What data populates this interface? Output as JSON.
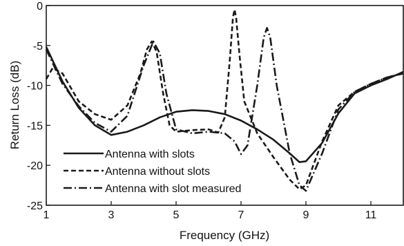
{
  "chart_data": {
    "type": "line",
    "xlabel": "Frequency (GHz)",
    "ylabel": "Return Loss (dB)",
    "xlim": [
      1,
      12
    ],
    "ylim": [
      -25,
      0
    ],
    "x_ticks": [
      1,
      3,
      5,
      7,
      9,
      11
    ],
    "y_ticks": [
      0,
      -5,
      -10,
      -15,
      -20,
      -25
    ],
    "x_tick_labels": [
      "1",
      "3",
      "5",
      "7",
      "9",
      "11"
    ],
    "y_tick_labels": [
      "0",
      "-5",
      "-10",
      "-15",
      "-20",
      "-25"
    ],
    "grid": false,
    "legend_position": "bottom-left",
    "series": [
      {
        "name": "Antenna with slots",
        "line_style": "solid",
        "color": "#1a1a1a",
        "points": [
          [
            1,
            -5.2
          ],
          [
            1.5,
            -9.5
          ],
          [
            2,
            -12.8
          ],
          [
            2.5,
            -15
          ],
          [
            3,
            -16.2
          ],
          [
            3.5,
            -15.8
          ],
          [
            4,
            -15
          ],
          [
            4.5,
            -14
          ],
          [
            5,
            -13.3
          ],
          [
            5.5,
            -13.1
          ],
          [
            6,
            -13.2
          ],
          [
            6.5,
            -13.6
          ],
          [
            7,
            -14.4
          ],
          [
            7.5,
            -15.5
          ],
          [
            8,
            -16.8
          ],
          [
            8.5,
            -18.5
          ],
          [
            8.8,
            -19.6
          ],
          [
            9,
            -19.5
          ],
          [
            9.5,
            -17.2
          ],
          [
            10,
            -13.5
          ],
          [
            10.5,
            -11
          ],
          [
            11,
            -10
          ],
          [
            11.5,
            -9.2
          ],
          [
            12,
            -8.3
          ]
        ]
      },
      {
        "name": "Antenna without slots",
        "line_style": "dashed",
        "color": "#1a1a1a",
        "points": [
          [
            1,
            -9.2
          ],
          [
            1.2,
            -7.8
          ],
          [
            1.5,
            -8.5
          ],
          [
            2,
            -12
          ],
          [
            2.5,
            -13.6
          ],
          [
            3,
            -14.3
          ],
          [
            3.5,
            -12.5
          ],
          [
            3.9,
            -8.5
          ],
          [
            4.1,
            -5.5
          ],
          [
            4.25,
            -4.5
          ],
          [
            4.4,
            -5.8
          ],
          [
            4.6,
            -11
          ],
          [
            4.8,
            -15
          ],
          [
            5,
            -15.8
          ],
          [
            5.5,
            -15.6
          ],
          [
            6,
            -15.5
          ],
          [
            6.3,
            -15.9
          ],
          [
            6.5,
            -14
          ],
          [
            6.65,
            -7
          ],
          [
            6.75,
            -1.5
          ],
          [
            6.8,
            -0.5
          ],
          [
            6.85,
            -1.5
          ],
          [
            6.95,
            -6
          ],
          [
            7.1,
            -12
          ],
          [
            7.5,
            -16
          ],
          [
            8,
            -19
          ],
          [
            8.5,
            -21.8
          ],
          [
            8.8,
            -23
          ],
          [
            9,
            -22.5
          ],
          [
            9.5,
            -17
          ],
          [
            10,
            -12.5
          ],
          [
            10.5,
            -10.8
          ],
          [
            11,
            -9.8
          ],
          [
            11.5,
            -9
          ],
          [
            12,
            -8.5
          ]
        ]
      },
      {
        "name": "Antenna with slot measured",
        "line_style": "dashdot",
        "color": "#1a1a1a",
        "points": [
          [
            1,
            -5.5
          ],
          [
            1.5,
            -9.8
          ],
          [
            2,
            -12.6
          ],
          [
            2.5,
            -14.7
          ],
          [
            3,
            -15.8
          ],
          [
            3.5,
            -13.8
          ],
          [
            4,
            -7.5
          ],
          [
            4.3,
            -4.5
          ],
          [
            4.5,
            -6
          ],
          [
            4.7,
            -11
          ],
          [
            5,
            -15.5
          ],
          [
            5.5,
            -16
          ],
          [
            6,
            -15.8
          ],
          [
            6.5,
            -16
          ],
          [
            6.8,
            -17
          ],
          [
            7,
            -18.6
          ],
          [
            7.2,
            -17.5
          ],
          [
            7.5,
            -10
          ],
          [
            7.7,
            -4
          ],
          [
            7.8,
            -2.8
          ],
          [
            7.9,
            -4
          ],
          [
            8.1,
            -10
          ],
          [
            8.5,
            -18.5
          ],
          [
            8.8,
            -22.5
          ],
          [
            9,
            -23.2
          ],
          [
            9.5,
            -18.5
          ],
          [
            10,
            -13
          ],
          [
            10.5,
            -10.8
          ],
          [
            11,
            -9.8
          ],
          [
            11.5,
            -9
          ],
          [
            12,
            -8.5
          ]
        ]
      }
    ]
  }
}
